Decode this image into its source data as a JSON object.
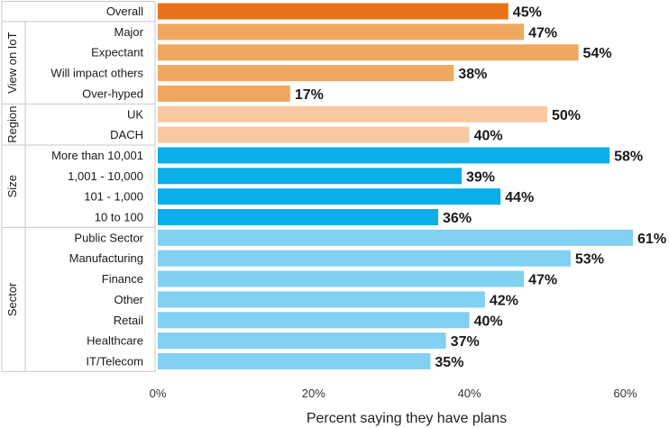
{
  "chart_data": {
    "type": "bar",
    "orientation": "horizontal",
    "xlabel": "Percent saying they have plans",
    "ylabel": "",
    "xlim": [
      0,
      61
    ],
    "xticks": [
      0,
      20,
      40,
      60
    ],
    "xtick_labels": [
      "0%",
      "20%",
      "40%",
      "60%"
    ],
    "value_suffix": "%",
    "grid": false,
    "groups": [
      {
        "name": "",
        "items": [
          {
            "label": "Overall",
            "value": 45,
            "color": "#e8731a"
          }
        ]
      },
      {
        "name": "View on IoT",
        "items": [
          {
            "label": "Major",
            "value": 47,
            "color": "#f0a860"
          },
          {
            "label": "Expectant",
            "value": 54,
            "color": "#f0a860"
          },
          {
            "label": "Will impact others",
            "value": 38,
            "color": "#f0a860"
          },
          {
            "label": "Over-hyped",
            "value": 17,
            "color": "#f0a860"
          }
        ]
      },
      {
        "name": "Region",
        "items": [
          {
            "label": "UK",
            "value": 50,
            "color": "#f8c9a3"
          },
          {
            "label": "DACH",
            "value": 40,
            "color": "#f8c9a3"
          }
        ]
      },
      {
        "name": "Size",
        "items": [
          {
            "label": "More than 10,001",
            "value": 58,
            "color": "#0aaee8"
          },
          {
            "label": "1,001 - 10,000",
            "value": 39,
            "color": "#0aaee8"
          },
          {
            "label": "101 - 1,000",
            "value": 44,
            "color": "#0aaee8"
          },
          {
            "label": "10 to 100",
            "value": 36,
            "color": "#0aaee8"
          }
        ]
      },
      {
        "name": "Sector",
        "items": [
          {
            "label": "Public Sector",
            "value": 61,
            "color": "#82d0f2"
          },
          {
            "label": "Manufacturing",
            "value": 53,
            "color": "#82d0f2"
          },
          {
            "label": "Finance",
            "value": 47,
            "color": "#82d0f2"
          },
          {
            "label": "Other",
            "value": 42,
            "color": "#82d0f2"
          },
          {
            "label": "Retail",
            "value": 40,
            "color": "#82d0f2"
          },
          {
            "label": "Healthcare",
            "value": 37,
            "color": "#82d0f2"
          },
          {
            "label": "IT/Telecom",
            "value": 35,
            "color": "#82d0f2"
          }
        ]
      }
    ]
  }
}
